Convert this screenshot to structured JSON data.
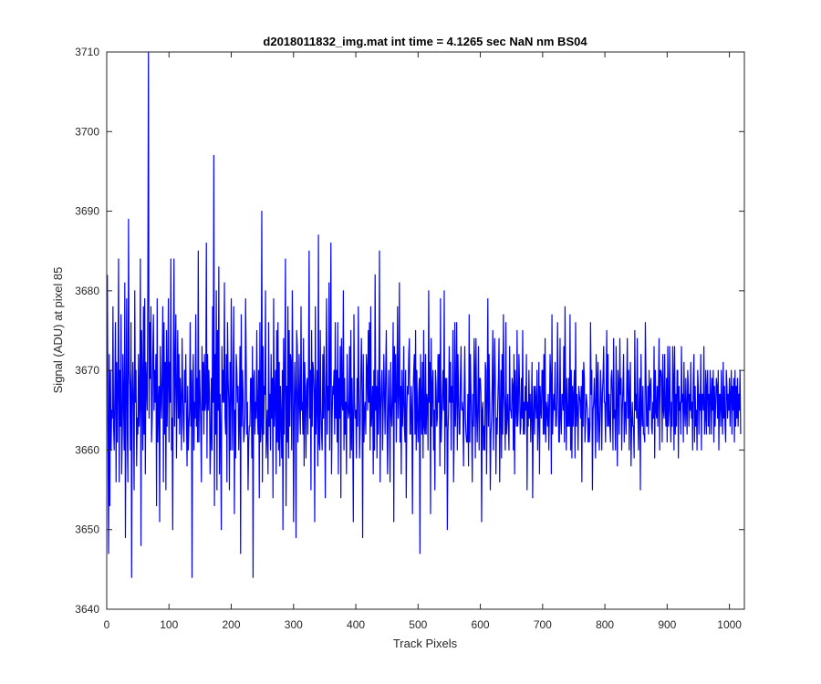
{
  "colors": {
    "line": "#0000ff",
    "axis": "#262626",
    "background": "#ffffff"
  },
  "chart_data": {
    "type": "line",
    "title": "d2018011832_img.mat int time = 4.1265 sec  NaN nm BS04",
    "xlabel": "Track Pixels",
    "ylabel": "Signal (ADU) at pixel 85",
    "xlim": [
      0,
      1024
    ],
    "ylim": [
      3640,
      3710
    ],
    "xticks": [
      0,
      100,
      200,
      300,
      400,
      500,
      600,
      700,
      800,
      900,
      1000
    ],
    "yticks": [
      3640,
      3650,
      3660,
      3670,
      3680,
      3690,
      3700,
      3710
    ],
    "grid": false,
    "legend": "none",
    "series": [
      {
        "x_start": 1,
        "x_step": 1,
        "values": [
          3682,
          3662,
          3647,
          3672,
          3653,
          3670,
          3660,
          3665,
          3664,
          3678,
          3663,
          3660,
          3667,
          3676,
          3656,
          3671,
          3661,
          3668,
          3684,
          3656,
          3670,
          3663,
          3677,
          3657,
          3662,
          3672,
          3666,
          3660,
          3681,
          3649,
          3666,
          3679,
          3662,
          3656,
          3689,
          3670,
          3668,
          3660,
          3676,
          3644,
          3667,
          3671,
          3665,
          3655,
          3680,
          3666,
          3670,
          3658,
          3664,
          3662,
          3672,
          3663,
          3666,
          3684,
          3648,
          3675,
          3669,
          3660,
          3678,
          3662,
          3679,
          3657,
          3671,
          3668,
          3665,
          3680,
          3710,
          3664,
          3676,
          3669,
          3678,
          3661,
          3664,
          3672,
          3677,
          3665,
          3670,
          3666,
          3672,
          3653,
          3679,
          3661,
          3666,
          3668,
          3651,
          3673,
          3667,
          3664,
          3670,
          3678,
          3656,
          3676,
          3662,
          3671,
          3655,
          3675,
          3663,
          3669,
          3679,
          3661,
          3671,
          3666,
          3684,
          3660,
          3664,
          3650,
          3672,
          3684,
          3663,
          3670,
          3677,
          3659,
          3667,
          3675,
          3664,
          3672,
          3662,
          3669,
          3666,
          3660,
          3674,
          3668,
          3663,
          3661,
          3670,
          3666,
          3672,
          3664,
          3658,
          3668,
          3660,
          3663,
          3665,
          3676,
          3663,
          3670,
          3644,
          3668,
          3672,
          3660,
          3666,
          3664,
          3677,
          3663,
          3669,
          3661,
          3685,
          3661,
          3670,
          3667,
          3663,
          3656,
          3673,
          3665,
          3671,
          3662,
          3672,
          3665,
          3666,
          3686,
          3659,
          3672,
          3665,
          3670,
          3667,
          3657,
          3661,
          3669,
          3660,
          3678,
          3666,
          3697,
          3653,
          3672,
          3662,
          3680,
          3655,
          3675,
          3665,
          3683,
          3657,
          3667,
          3662,
          3650,
          3673,
          3666,
          3670,
          3666,
          3681,
          3664,
          3662,
          3672,
          3656,
          3676,
          3669,
          3666,
          3655,
          3671,
          3660,
          3679,
          3667,
          3660,
          3669,
          3678,
          3652,
          3665,
          3659,
          3672,
          3670,
          3666,
          3668,
          3660,
          3664,
          3673,
          3647,
          3677,
          3663,
          3670,
          3667,
          3661,
          3662,
          3664,
          3679,
          3671,
          3662,
          3666,
          3655,
          3661,
          3663,
          3663,
          3669,
          3669,
          3659,
          3673,
          3644,
          3669,
          3670,
          3662,
          3666,
          3664,
          3675,
          3665,
          3662,
          3670,
          3654,
          3676,
          3661,
          3663,
          3690,
          3656,
          3673,
          3662,
          3668,
          3667,
          3680,
          3659,
          3662,
          3665,
          3657,
          3676,
          3663,
          3667,
          3660,
          3672,
          3664,
          3669,
          3654,
          3679,
          3663,
          3666,
          3670,
          3657,
          3675,
          3661,
          3676,
          3660,
          3671,
          3658,
          3668,
          3664,
          3659,
          3670,
          3650,
          3674,
          3662,
          3670,
          3684,
          3653,
          3668,
          3661,
          3678,
          3659,
          3675,
          3663,
          3672,
          3671,
          3660,
          3680,
          3670,
          3651,
          3665,
          3671,
          3667,
          3649,
          3675,
          3673,
          3661,
          3665,
          3672,
          3665,
          3662,
          3678,
          3665,
          3666,
          3662,
          3674,
          3658,
          3671,
          3667,
          3659,
          3668,
          3669,
          3662,
          3670,
          3685,
          3664,
          3670,
          3655,
          3675,
          3663,
          3671,
          3670,
          3667,
          3651,
          3678,
          3662,
          3666,
          3670,
          3658,
          3687,
          3661,
          3660,
          3675,
          3665,
          3662,
          3660,
          3672,
          3664,
          3673,
          3666,
          3654,
          3669,
          3679,
          3662,
          3668,
          3665,
          3681,
          3660,
          3670,
          3686,
          3657,
          3664,
          3668,
          3667,
          3670,
          3662,
          3676,
          3664,
          3670,
          3661,
          3676,
          3657,
          3669,
          3664,
          3673,
          3654,
          3674,
          3666,
          3665,
          3680,
          3660,
          3669,
          3662,
          3666,
          3657,
          3672,
          3666,
          3664,
          3665,
          3673,
          3659,
          3675,
          3660,
          3669,
          3663,
          3651,
          3677,
          3666,
          3664,
          3665,
          3659,
          3669,
          3663,
          3678,
          3668,
          3659,
          3663,
          3669,
          3674,
          3667,
          3649,
          3672,
          3661,
          3665,
          3666,
          3662,
          3672,
          3670,
          3665,
          3675,
          3666,
          3676,
          3660,
          3678,
          3663,
          3665,
          3668,
          3657,
          3670,
          3660,
          3682,
          3665,
          3668,
          3659,
          3670,
          3662,
          3666,
          3685,
          3656,
          3665,
          3668,
          3670,
          3660,
          3665,
          3672,
          3667,
          3662,
          3670,
          3675,
          3664,
          3657,
          3665,
          3670,
          3664,
          3656,
          3671,
          3665,
          3663,
          3667,
          3676,
          3651,
          3673,
          3666,
          3672,
          3661,
          3667,
          3678,
          3664,
          3667,
          3681,
          3661,
          3668,
          3657,
          3670,
          3663,
          3666,
          3673,
          3663,
          3661,
          3670,
          3654,
          3665,
          3668,
          3667,
          3672,
          3674,
          3662,
          3662,
          3668,
          3665,
          3652,
          3667,
          3670,
          3672,
          3662,
          3675,
          3660,
          3670,
          3664,
          3661,
          3667,
          3669,
          3647,
          3672,
          3666,
          3662,
          3671,
          3659,
          3675,
          3663,
          3662,
          3672,
          3662,
          3667,
          3666,
          3660,
          3680,
          3666,
          3671,
          3652,
          3674,
          3663,
          3668,
          3670,
          3660,
          3665,
          3655,
          3670,
          3668,
          3663,
          3664,
          3672,
          3666,
          3672,
          3658,
          3679,
          3661,
          3664,
          3667,
          3670,
          3665,
          3680,
          3657,
          3669,
          3663,
          3669,
          3650,
          3662,
          3665,
          3673,
          3666,
          3671,
          3660,
          3668,
          3666,
          3675,
          3656,
          3662,
          3676,
          3663,
          3667,
          3676,
          3660,
          3672,
          3667,
          3662,
          3662,
          3669,
          3673,
          3665,
          3666,
          3665,
          3658,
          3667,
          3673,
          3664,
          3662,
          3661,
          3661,
          3667,
          3658,
          3677,
          3661,
          3672,
          3667,
          3663,
          3656,
          3667,
          3663,
          3674,
          3670,
          3659,
          3674,
          3665,
          3661,
          3666,
          3673,
          3660,
          3669,
          3669,
          3667,
          3651,
          3665,
          3666,
          3660,
          3663,
          3660,
          3671,
          3670,
          3657,
          3666,
          3679,
          3663,
          3672,
          3666,
          3655,
          3662,
          3664,
          3668,
          3675,
          3660,
          3667,
          3674,
          3669,
          3657,
          3664,
          3662,
          3666,
          3669,
          3674,
          3656,
          3664,
          3670,
          3659,
          3672,
          3662,
          3677,
          3667,
          3665,
          3660,
          3676,
          3662,
          3664,
          3667,
          3663,
          3660,
          3673,
          3665,
          3665,
          3664,
          3669,
          3668,
          3660,
          3672,
          3657,
          3670,
          3666,
          3663,
          3675,
          3663,
          3665,
          3672,
          3668,
          3662,
          3663,
          3669,
          3664,
          3675,
          3662,
          3666,
          3662,
          3668,
          3665,
          3672,
          3655,
          3666,
          3663,
          3670,
          3664,
          3667,
          3661,
          3665,
          3671,
          3654,
          3664,
          3668,
          3662,
          3668,
          3666,
          3664,
          3670,
          3660,
          3664,
          3671,
          3657,
          3668,
          3665,
          3664,
          3670,
          3670,
          3662,
          3672,
          3662,
          3674,
          3661,
          3666,
          3665,
          3663,
          3667,
          3660,
          3665,
          3672,
          3669,
          3657,
          3677,
          3662,
          3665,
          3667,
          3665,
          3671,
          3663,
          3663,
          3666,
          3676,
          3668,
          3661,
          3661,
          3674,
          3664,
          3662,
          3667,
          3667,
          3665,
          3673,
          3661,
          3678,
          3667,
          3660,
          3669,
          3663,
          3663,
          3669,
          3663,
          3677,
          3660,
          3670,
          3659,
          3668,
          3663,
          3667,
          3670,
          3659,
          3676,
          3663,
          3667,
          3665,
          3660,
          3668,
          3667,
          3666,
          3664,
          3668,
          3656,
          3670,
          3663,
          3671,
          3669,
          3661,
          3664,
          3667,
          3666,
          3665,
          3661,
          3664,
          3661,
          3663,
          3676,
          3667,
          3670,
          3655,
          3665,
          3666,
          3669,
          3665,
          3659,
          3672,
          3669,
          3661,
          3671,
          3665,
          3660,
          3664,
          3670,
          3667,
          3660,
          3667,
          3669,
          3673,
          3666,
          3666,
          3661,
          3667,
          3675,
          3663,
          3672,
          3663,
          3667,
          3663,
          3661,
          3669,
          3670,
          3667,
          3660,
          3674,
          3664,
          3665,
          3660,
          3673,
          3666,
          3658,
          3670,
          3668,
          3662,
          3674,
          3667,
          3669,
          3660,
          3665,
          3668,
          3672,
          3661,
          3666,
          3666,
          3662,
          3668,
          3674,
          3664,
          3670,
          3660,
          3667,
          3671,
          3658,
          3663,
          3666,
          3663,
          3663,
          3659,
          3675,
          3665,
          3667,
          3664,
          3674,
          3664,
          3660,
          3666,
          3669,
          3655,
          3672,
          3665,
          3663,
          3668,
          3662,
          3662,
          3661,
          3676,
          3669,
          3663,
          3663,
          3668,
          3662,
          3670,
          3665,
          3668,
          3669,
          3663,
          3662,
          3666,
          3664,
          3673,
          3659,
          3670,
          3665,
          3664,
          3668,
          3663,
          3668,
          3674,
          3660,
          3670,
          3670,
          3669,
          3661,
          3672,
          3665,
          3664,
          3672,
          3665,
          3663,
          3669,
          3661,
          3673,
          3663,
          3665,
          3673,
          3665,
          3661,
          3666,
          3663,
          3673,
          3669,
          3660,
          3673,
          3662,
          3667,
          3663,
          3670,
          3670,
          3659,
          3668,
          3665,
          3666,
          3662,
          3673,
          3666,
          3667,
          3661,
          3671,
          3665,
          3663,
          3669,
          3665,
          3662,
          3670,
          3668,
          3663,
          3667,
          3665,
          3671,
          3664,
          3666,
          3660,
          3669,
          3672,
          3661,
          3668,
          3663,
          3665,
          3660,
          3670,
          3668,
          3662,
          3667,
          3665,
          3672,
          3660,
          3667,
          3667,
          3665,
          3673,
          3662,
          3664,
          3670,
          3662,
          3668,
          3670,
          3663,
          3667,
          3662,
          3670,
          3667,
          3662,
          3669,
          3665,
          3670,
          3661,
          3668,
          3663,
          3666,
          3669,
          3668,
          3664,
          3670,
          3660,
          3667,
          3667,
          3663,
          3670,
          3665,
          3662,
          3671,
          3664,
          3668,
          3663,
          3661,
          3670,
          3668,
          3664,
          3667,
          3665,
          3669,
          3663,
          3667,
          3670,
          3662,
          3668,
          3665,
          3669,
          3661,
          3670,
          3663,
          3668,
          3664,
          3669,
          3663,
          3667,
          3665,
          3670,
          3662
        ]
      }
    ]
  }
}
